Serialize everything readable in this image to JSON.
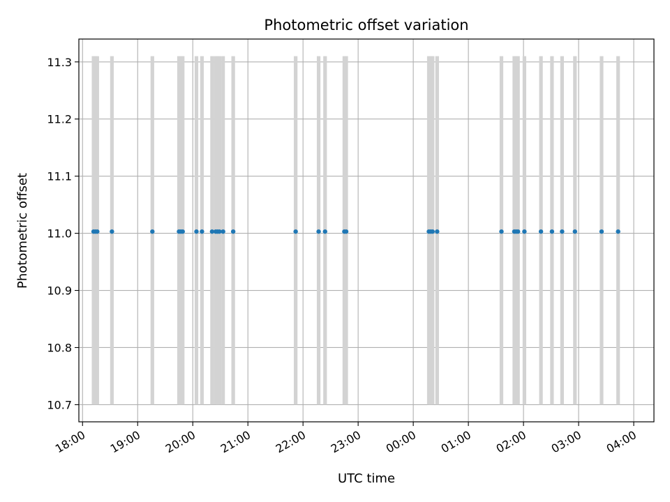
{
  "chart_data": {
    "type": "scatter",
    "title": "Photometric offset variation",
    "xlabel": "UTC time",
    "ylabel": "Photometric offset",
    "x_axis": "time",
    "x_ticks": [
      "18:00",
      "19:00",
      "20:00",
      "21:00",
      "22:00",
      "23:00",
      "00:00",
      "01:00",
      "02:00",
      "03:00",
      "04:00"
    ],
    "xlim": [
      "17:56",
      "04:22"
    ],
    "y_ticks": [
      "10.7",
      "10.8",
      "10.9",
      "11.0",
      "11.1",
      "11.2",
      "11.3"
    ],
    "ylim": [
      10.67,
      11.34
    ],
    "grid": true,
    "series": [
      {
        "kind": "points",
        "color": "#1f77b4",
        "points": [
          {
            "x": "18:12",
            "y": 11.003
          },
          {
            "x": "18:14",
            "y": 11.003
          },
          {
            "x": "18:16",
            "y": 11.003
          },
          {
            "x": "18:32",
            "y": 11.003
          },
          {
            "x": "19:16",
            "y": 11.003
          },
          {
            "x": "19:45",
            "y": 11.003
          },
          {
            "x": "19:47",
            "y": 11.003
          },
          {
            "x": "19:49",
            "y": 11.003
          },
          {
            "x": "20:04",
            "y": 11.003
          },
          {
            "x": "20:10",
            "y": 11.003
          },
          {
            "x": "20:21",
            "y": 11.003
          },
          {
            "x": "20:25",
            "y": 11.003
          },
          {
            "x": "20:27",
            "y": 11.003
          },
          {
            "x": "20:29",
            "y": 11.003
          },
          {
            "x": "20:33",
            "y": 11.003
          },
          {
            "x": "20:44",
            "y": 11.003
          },
          {
            "x": "21:52",
            "y": 11.003
          },
          {
            "x": "22:17",
            "y": 11.003
          },
          {
            "x": "22:24",
            "y": 11.003
          },
          {
            "x": "22:45",
            "y": 11.003
          },
          {
            "x": "22:47",
            "y": 11.003
          },
          {
            "x": "00:17",
            "y": 11.003
          },
          {
            "x": "00:19",
            "y": 11.003
          },
          {
            "x": "00:21",
            "y": 11.003
          },
          {
            "x": "00:26",
            "y": 11.003
          },
          {
            "x": "01:36",
            "y": 11.003
          },
          {
            "x": "01:50",
            "y": 11.003
          },
          {
            "x": "01:52",
            "y": 11.003
          },
          {
            "x": "01:54",
            "y": 11.003
          },
          {
            "x": "02:01",
            "y": 11.003
          },
          {
            "x": "02:19",
            "y": 11.003
          },
          {
            "x": "02:31",
            "y": 11.003
          },
          {
            "x": "02:42",
            "y": 11.003
          },
          {
            "x": "02:56",
            "y": 11.003
          },
          {
            "x": "03:25",
            "y": 11.003
          },
          {
            "x": "03:43",
            "y": 11.003
          }
        ]
      },
      {
        "kind": "vertical-bands",
        "color": "#d3d3d3",
        "y_range": [
          10.7,
          11.31
        ],
        "x": [
          "18:12",
          "18:14",
          "18:16",
          "18:32",
          "19:16",
          "19:45",
          "19:47",
          "19:49",
          "20:04",
          "20:10",
          "20:21",
          "20:25",
          "20:27",
          "20:29",
          "20:33",
          "20:44",
          "21:52",
          "22:17",
          "22:24",
          "22:45",
          "22:47",
          "00:17",
          "00:19",
          "00:21",
          "00:26",
          "01:36",
          "01:50",
          "01:52",
          "01:54",
          "02:01",
          "02:19",
          "02:31",
          "02:42",
          "02:56",
          "03:25",
          "03:43"
        ]
      }
    ]
  }
}
